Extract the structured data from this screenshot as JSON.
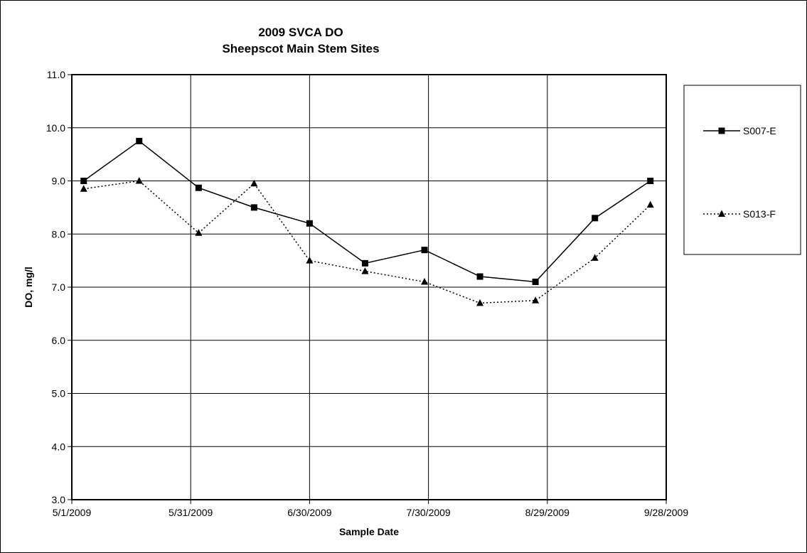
{
  "chart_data": {
    "type": "line",
    "title": "2009 SVCA DO",
    "subtitle": "Sheepscot Main Stem Sites",
    "xlabel": "Sample Date",
    "ylabel": "DO, mg/l",
    "xlim": [
      "5/1/2009",
      "9/28/2009"
    ],
    "x_ticks": [
      "5/1/2009",
      "5/31/2009",
      "6/30/2009",
      "7/30/2009",
      "8/29/2009",
      "9/28/2009"
    ],
    "ylim": [
      3.0,
      11.0
    ],
    "y_ticks": [
      "3.0",
      "4.0",
      "5.0",
      "6.0",
      "7.0",
      "8.0",
      "9.0",
      "10.0",
      "11.0"
    ],
    "grid": true,
    "legend_position": "right",
    "series": [
      {
        "name": "S007-E",
        "marker": "square",
        "line_style": "solid",
        "color": "#000000",
        "points": [
          {
            "x": "5/4/2009",
            "y": 9.0
          },
          {
            "x": "5/18/2009",
            "y": 9.75
          },
          {
            "x": "6/2/2009",
            "y": 8.87
          },
          {
            "x": "6/16/2009",
            "y": 8.5
          },
          {
            "x": "6/30/2009",
            "y": 8.2
          },
          {
            "x": "7/14/2009",
            "y": 7.45
          },
          {
            "x": "7/29/2009",
            "y": 7.7
          },
          {
            "x": "8/12/2009",
            "y": 7.2
          },
          {
            "x": "8/26/2009",
            "y": 7.1
          },
          {
            "x": "9/10/2009",
            "y": 8.3
          },
          {
            "x": "9/24/2009",
            "y": 9.0
          }
        ]
      },
      {
        "name": "S013-F",
        "marker": "triangle",
        "line_style": "dotted",
        "color": "#000000",
        "points": [
          {
            "x": "5/4/2009",
            "y": 8.85
          },
          {
            "x": "5/18/2009",
            "y": 9.0
          },
          {
            "x": "6/2/2009",
            "y": 8.02
          },
          {
            "x": "6/16/2009",
            "y": 8.95
          },
          {
            "x": "6/30/2009",
            "y": 7.5
          },
          {
            "x": "7/14/2009",
            "y": 7.3
          },
          {
            "x": "7/29/2009",
            "y": 7.1
          },
          {
            "x": "8/12/2009",
            "y": 6.7
          },
          {
            "x": "8/26/2009",
            "y": 6.75
          },
          {
            "x": "9/10/2009",
            "y": 7.55
          },
          {
            "x": "9/24/2009",
            "y": 8.55
          }
        ]
      }
    ]
  }
}
